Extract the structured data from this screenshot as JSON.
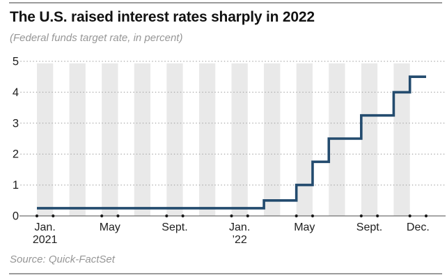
{
  "header": {
    "title": "The U.S. raised interest rates sharply in 2022",
    "subtitle": "(Federal funds target rate, in percent)"
  },
  "source_label": "Source: Quick-FactSet",
  "colors": {
    "accent_line": "#234b6e",
    "month_band": "#e9e9e9",
    "grid_dots": "#adadad",
    "axis_line": "#707070",
    "tick_dot": "#1a1a1a",
    "tick_text": "#202020",
    "muted_text": "#969696",
    "title_text": "#121212",
    "rule": "#9b9b9b"
  },
  "chart_data": {
    "type": "line",
    "line_style": "step-after",
    "title": "The U.S. raised interest rates sharply in 2022",
    "subtitle": "(Federal funds target rate, in percent)",
    "source": "Source: Quick-FactSet",
    "ylabel": "Federal funds target rate, in percent",
    "ylim": [
      0,
      5
    ],
    "yticks": [
      0,
      1,
      2,
      3,
      4,
      5
    ],
    "x_start_month": "2021-01",
    "x_end_month": "2022-12",
    "x_months_total": 24,
    "grid": "dotted horizontal lines at integers; alternating monthly shaded bands; dots on x-axis flank labeled months",
    "legend": "none",
    "series": [
      {
        "name": "Federal funds target rate",
        "step_points": [
          {
            "month": "2021-01",
            "rate": 0.25
          },
          {
            "month": "2022-03",
            "rate": 0.5
          },
          {
            "month": "2022-05",
            "rate": 1.0
          },
          {
            "month": "2022-06",
            "rate": 1.75
          },
          {
            "month": "2022-07",
            "rate": 2.5
          },
          {
            "month": "2022-09",
            "rate": 3.25
          },
          {
            "month": "2022-11",
            "rate": 4.0
          },
          {
            "month": "2022-12",
            "rate": 4.5
          }
        ]
      }
    ],
    "x_tick_labels": [
      {
        "month": "2021-01",
        "line1": "Jan.",
        "line2": "2021"
      },
      {
        "month": "2021-05",
        "line1": "May"
      },
      {
        "month": "2021-09",
        "line1": "Sept."
      },
      {
        "month": "2022-01",
        "line1": "Jan.",
        "line2": "’22"
      },
      {
        "month": "2022-05",
        "line1": "May"
      },
      {
        "month": "2022-09",
        "line1": "Sept."
      },
      {
        "month": "2022-12",
        "line1": "Dec."
      }
    ]
  }
}
